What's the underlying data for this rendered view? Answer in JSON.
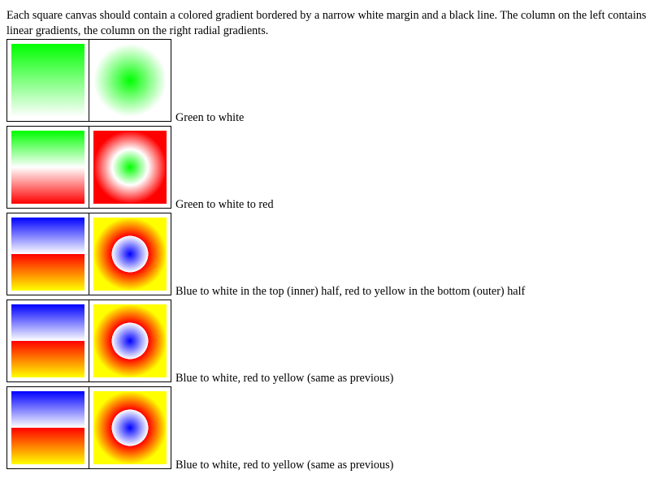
{
  "intro_text": "Each square canvas should contain a colored gradient bordered by a narrow white margin and a black line. The column on the left contains linear gradients, the column on the right radial gradients.",
  "rows": [
    {
      "caption": "Green to white",
      "colors": [
        "#00ff00",
        "#ffffff"
      ]
    },
    {
      "caption": "Green to white to red",
      "colors": [
        "#00ff00",
        "#ffffff",
        "#ff0000"
      ]
    },
    {
      "caption": "Blue to white in the top (inner) half, red to yellow in the bottom (outer) half",
      "colors": [
        "#0000ff",
        "#ffffff",
        "#ff0000",
        "#ffff00"
      ]
    },
    {
      "caption": "Blue to white, red to yellow (same as previous)",
      "colors": [
        "#0000ff",
        "#ffffff",
        "#ff0000",
        "#ffff00"
      ]
    },
    {
      "caption": "Blue to white, red to yellow (same as previous)",
      "colors": [
        "#0000ff",
        "#ffffff",
        "#ff0000",
        "#ffff00"
      ]
    }
  ]
}
